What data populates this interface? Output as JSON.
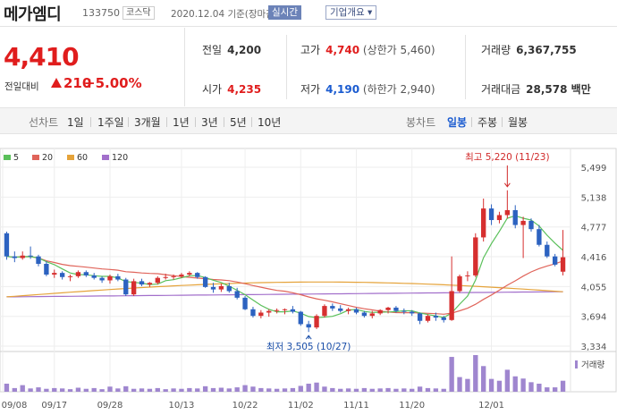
{
  "header": {
    "name": "메가엠디",
    "code": "133750",
    "market": "코스닥",
    "date": "2020.12.04 기준(장마감)",
    "realtime": "실시간",
    "company": "기업개요 ▾"
  },
  "quote": {
    "price": "4,410",
    "change_label": "전일대비",
    "change": "210",
    "percent": "+5.00%"
  },
  "stats": {
    "prev_label": "전일",
    "prev": "4,200",
    "high_label": "고가",
    "high": "4,740",
    "upper_limit": "(상한가 5,460)",
    "volume_label": "거래량",
    "volume": "6,367,755",
    "open_label": "시가",
    "open": "4,235",
    "low_label": "저가",
    "low": "4,190",
    "lower_limit": "(하한가 2,940)",
    "amount_label": "거래대금",
    "amount": "28,578 백만"
  },
  "tabs": {
    "line_label": "선차트",
    "periods": [
      "1일",
      "1주일",
      "3개월",
      "1년",
      "3년",
      "5년",
      "10년"
    ],
    "candle_label": "봉차트",
    "candles": [
      "일봉",
      "주봉",
      "월봉"
    ]
  },
  "colors": {
    "up": "#d62f2f",
    "down": "#2c62c0",
    "ma5": "#5ac05a",
    "ma20": "#e0645a",
    "ma60": "#e5a33a",
    "ma120": "#a26fcb"
  },
  "chart_data": {
    "type": "candlestick",
    "legend": [
      {
        "name": "5",
        "color": "#5ac05a"
      },
      {
        "name": "20",
        "color": "#e0645a"
      },
      {
        "name": "60",
        "color": "#e5a33a"
      },
      {
        "name": "120",
        "color": "#a26fcb"
      }
    ],
    "y_ticks": [
      "5,499",
      "5,138",
      "4,777",
      "4,416",
      "4,055",
      "3,694",
      "3,334"
    ],
    "ylim": [
      3334,
      5499
    ],
    "x_ticks": [
      "09/08",
      "09/17",
      "09/28",
      "10/13",
      "10/22",
      "11/02",
      "11/11",
      "11/20",
      "12/01"
    ],
    "volume_label": "거래량",
    "annotation_high": "최고 5,220 (11/23)",
    "annotation_low": "최저 3,505 (10/27)",
    "candles": [
      [
        4700,
        4720,
        4380,
        4420
      ],
      [
        4420,
        4480,
        4350,
        4400
      ],
      [
        4400,
        4480,
        4380,
        4430
      ],
      [
        4430,
        4540,
        4390,
        4420
      ],
      [
        4420,
        4440,
        4300,
        4330
      ],
      [
        4330,
        4360,
        4180,
        4200
      ],
      [
        4200,
        4260,
        4160,
        4220
      ],
      [
        4220,
        4240,
        4140,
        4170
      ],
      [
        4170,
        4200,
        4120,
        4180
      ],
      [
        4180,
        4250,
        4160,
        4230
      ],
      [
        4230,
        4250,
        4170,
        4190
      ],
      [
        4190,
        4220,
        4140,
        4160
      ],
      [
        4160,
        4180,
        4100,
        4130
      ],
      [
        4130,
        4200,
        4090,
        4180
      ],
      [
        4180,
        4210,
        4120,
        4140
      ],
      [
        4140,
        4160,
        3940,
        3960
      ],
      [
        3960,
        4150,
        3940,
        4120
      ],
      [
        4120,
        4150,
        4060,
        4080
      ],
      [
        4080,
        4110,
        4050,
        4100
      ],
      [
        4100,
        4180,
        4080,
        4160
      ],
      [
        4160,
        4210,
        4140,
        4170
      ],
      [
        4170,
        4200,
        4140,
        4180
      ],
      [
        4180,
        4220,
        4160,
        4200
      ],
      [
        4200,
        4240,
        4180,
        4220
      ],
      [
        4220,
        4230,
        4150,
        4170
      ],
      [
        4170,
        4180,
        4040,
        4050
      ],
      [
        4050,
        4100,
        3980,
        4020
      ],
      [
        4020,
        4090,
        3990,
        4060
      ],
      [
        4060,
        4100,
        3980,
        4000
      ],
      [
        4000,
        4040,
        3900,
        3920
      ],
      [
        3920,
        3940,
        3770,
        3780
      ],
      [
        3780,
        3810,
        3680,
        3700
      ],
      [
        3700,
        3770,
        3670,
        3740
      ],
      [
        3740,
        3780,
        3690,
        3760
      ],
      [
        3760,
        3790,
        3730,
        3770
      ],
      [
        3770,
        3790,
        3720,
        3780
      ],
      [
        3780,
        3820,
        3730,
        3750
      ],
      [
        3750,
        3760,
        3580,
        3600
      ],
      [
        3600,
        3640,
        3505,
        3560
      ],
      [
        3560,
        3720,
        3540,
        3700
      ],
      [
        3700,
        3840,
        3680,
        3820
      ],
      [
        3820,
        3850,
        3760,
        3790
      ],
      [
        3790,
        3830,
        3740,
        3760
      ],
      [
        3760,
        3800,
        3720,
        3780
      ],
      [
        3780,
        3800,
        3720,
        3740
      ],
      [
        3740,
        3760,
        3680,
        3700
      ],
      [
        3700,
        3760,
        3670,
        3730
      ],
      [
        3730,
        3780,
        3710,
        3770
      ],
      [
        3770,
        3810,
        3730,
        3800
      ],
      [
        3800,
        3820,
        3740,
        3760
      ],
      [
        3760,
        3790,
        3720,
        3750
      ],
      [
        3750,
        3770,
        3700,
        3730
      ],
      [
        3730,
        3740,
        3600,
        3640
      ],
      [
        3640,
        3720,
        3620,
        3700
      ],
      [
        3700,
        3740,
        3640,
        3680
      ],
      [
        3680,
        3700,
        3620,
        3650
      ],
      [
        3650,
        4420,
        3640,
        4000
      ],
      [
        4000,
        4200,
        3980,
        4180
      ],
      [
        4180,
        4240,
        4120,
        4190
      ],
      [
        4190,
        4700,
        4170,
        4650
      ],
      [
        4650,
        5120,
        4600,
        5000
      ],
      [
        5000,
        5050,
        4800,
        4860
      ],
      [
        4860,
        4960,
        4820,
        4920
      ],
      [
        4920,
        5220,
        4880,
        4980
      ],
      [
        4980,
        5040,
        4760,
        4800
      ],
      [
        4800,
        4900,
        4400,
        4850
      ],
      [
        4850,
        4880,
        4720,
        4750
      ],
      [
        4750,
        4800,
        4540,
        4560
      ],
      [
        4560,
        4600,
        4400,
        4420
      ],
      [
        4420,
        4450,
        4300,
        4320
      ],
      [
        4235,
        4740,
        4190,
        4410
      ]
    ],
    "volume": [
      22,
      10,
      18,
      9,
      12,
      8,
      10,
      9,
      7,
      11,
      8,
      10,
      7,
      14,
      9,
      15,
      8,
      9,
      8,
      10,
      7,
      9,
      8,
      10,
      9,
      15,
      10,
      11,
      9,
      12,
      18,
      14,
      10,
      9,
      8,
      9,
      10,
      16,
      22,
      25,
      14,
      10,
      8,
      9,
      8,
      10,
      8,
      9,
      10,
      8,
      9,
      8,
      14,
      10,
      9,
      8,
      95,
      40,
      35,
      100,
      70,
      35,
      30,
      60,
      42,
      36,
      26,
      22,
      12,
      12,
      30
    ]
  }
}
